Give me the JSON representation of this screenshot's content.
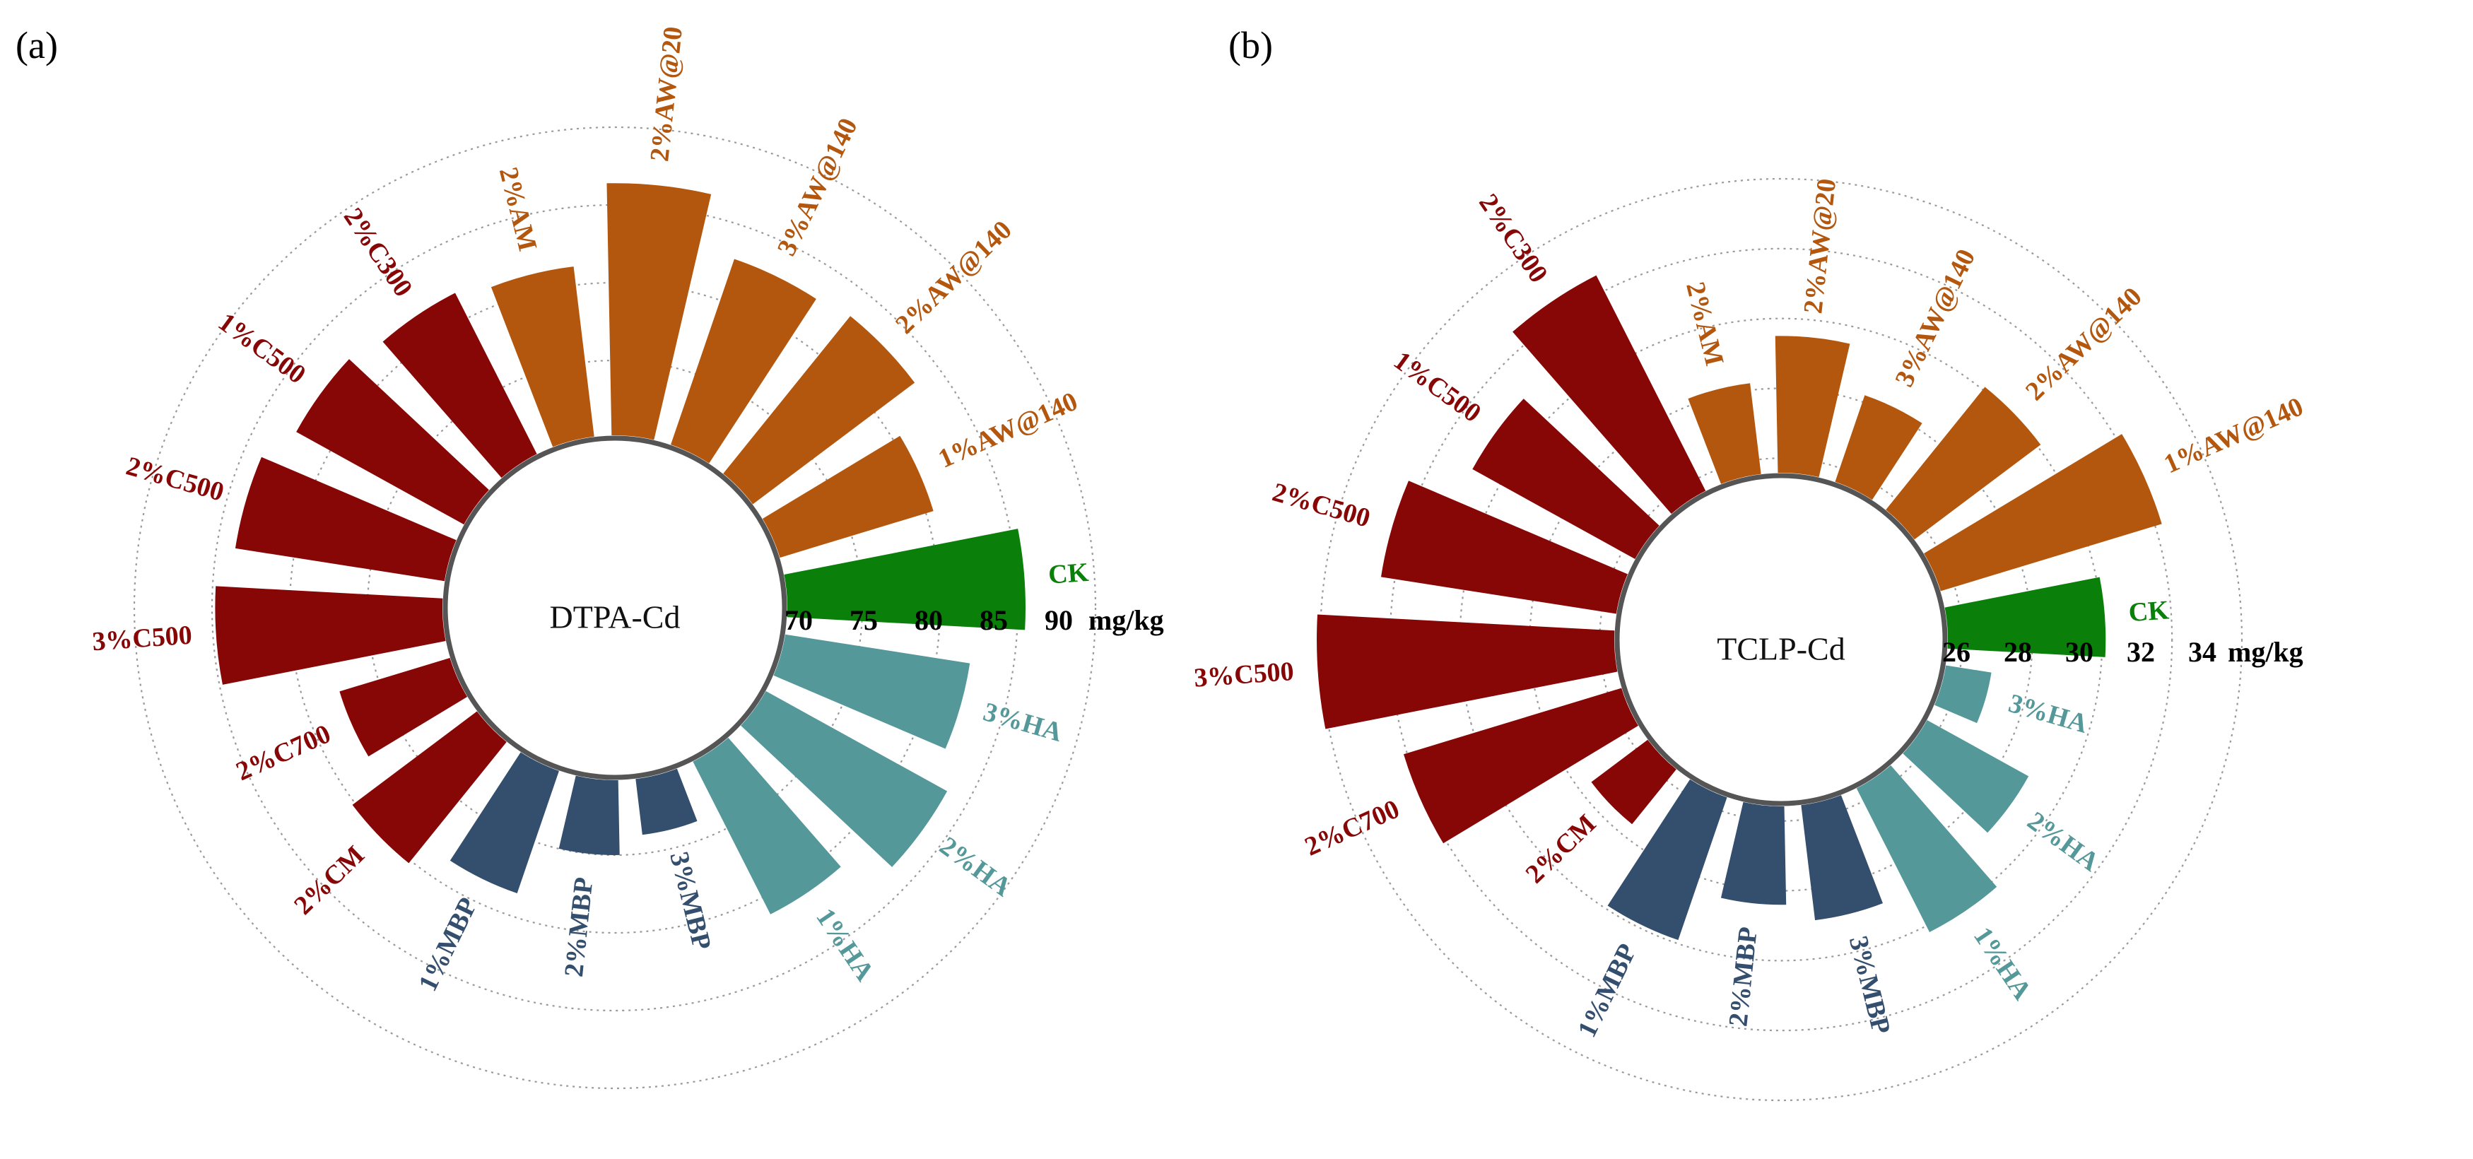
{
  "figure_title": "Polar bar charts of DTPA-Cd and TCLP-Cd",
  "colors": {
    "CK": "#0a7f0a",
    "HA": "#55989a",
    "MBP": "#344e6e",
    "C": "#870606",
    "AW": "#b3570e",
    "grid": "#9a9a9a",
    "ring": "#555555"
  },
  "chart_data": [
    {
      "type": "bar",
      "polar": true,
      "panel_label": "(a)",
      "title": "DTPA-Cd",
      "unit": "mg/kg",
      "rlim": [
        70,
        90
      ],
      "ticks": [
        70,
        75,
        80,
        85,
        90
      ],
      "tick_labels": [
        "70",
        "75",
        "80",
        "85",
        "90"
      ],
      "grid": true,
      "categories": [
        "CK",
        "3%HA",
        "2%HA",
        "1%HA",
        "3%MBP",
        "2%MBP",
        "1%MBP",
        "2%CM",
        "2%C700",
        "3%C500",
        "2%C500",
        "1%C500",
        "2%C300",
        "2%AM",
        "2%AW@20",
        "3%AW@140",
        "2%AW@140",
        "1%AW@140"
      ],
      "groups": [
        "CK",
        "HA",
        "HA",
        "HA",
        "MBP",
        "MBP",
        "MBP",
        "C",
        "C",
        "C",
        "C",
        "C",
        "C",
        "AW",
        "AW",
        "AW",
        "AW",
        "AW"
      ],
      "values": [
        85.5,
        82.2,
        83.5,
        81.2,
        73.8,
        75.0,
        78.5,
        80.2,
        77.6,
        84.8,
        83.8,
        82.5,
        81.8,
        81.2,
        86.4,
        82.8,
        83.2,
        80.5
      ]
    },
    {
      "type": "bar",
      "polar": true,
      "panel_label": "(b)",
      "title": "TCLP-Cd",
      "unit": "mg/kg",
      "rlim": [
        25.5,
        34
      ],
      "ticks": [
        26,
        28,
        30,
        32,
        34
      ],
      "tick_labels": [
        "26",
        "28",
        "30",
        "32",
        "34"
      ],
      "grid": true,
      "categories": [
        "CK",
        "3%HA",
        "2%HA",
        "1%HA",
        "3%MBP",
        "2%MBP",
        "1%MBP",
        "2%CM",
        "2%C700",
        "3%C500",
        "2%C500",
        "1%C500",
        "2%C300",
        "2%AM",
        "2%AW@20",
        "3%AW@140",
        "2%AW@140",
        "1%AW@140"
      ],
      "groups": [
        "CK",
        "HA",
        "HA",
        "HA",
        "MBP",
        "MBP",
        "MBP",
        "C",
        "C",
        "C",
        "C",
        "C",
        "C",
        "AW",
        "AW",
        "AW",
        "AW",
        "AW"
      ],
      "values": [
        30.1,
        26.9,
        28.9,
        30.2,
        28.9,
        28.4,
        29.9,
        27.6,
        32.1,
        34.1,
        32.4,
        30.9,
        32.5,
        28.2,
        29.5,
        28.2,
        30.1,
        32.2
      ]
    }
  ]
}
